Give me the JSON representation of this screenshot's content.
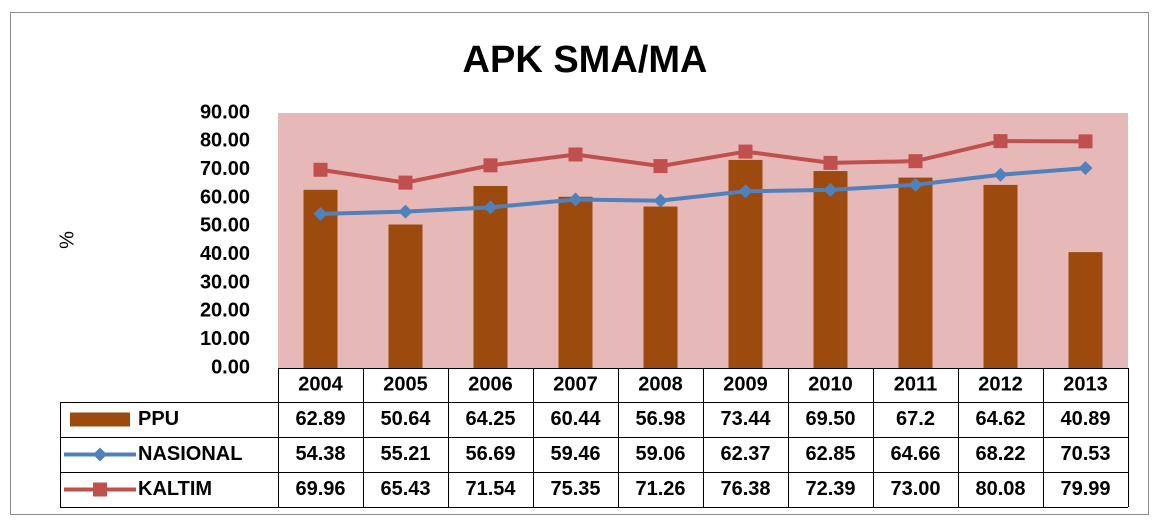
{
  "chart_data": {
    "type": "bar",
    "title": "APK SMA/MA",
    "y_label": "%",
    "categories": [
      "2004",
      "2005",
      "2006",
      "2007",
      "2008",
      "2009",
      "2010",
      "2011",
      "2012",
      "2013"
    ],
    "series": [
      {
        "name": "PPU",
        "type": "bar",
        "color": "#9c4a0e",
        "values": [
          62.89,
          50.64,
          64.25,
          60.44,
          56.98,
          73.44,
          69.5,
          67.2,
          64.62,
          40.89
        ],
        "value_labels": [
          "62.89",
          "50.64",
          "64.25",
          "60.44",
          "56.98",
          "73.44",
          "69.50",
          "67.2",
          "64.62",
          "40.89"
        ]
      },
      {
        "name": "NASIONAL",
        "type": "line",
        "marker": "diamond",
        "color": "#4f81bd",
        "values": [
          54.38,
          55.21,
          56.69,
          59.46,
          59.06,
          62.37,
          62.85,
          64.66,
          68.22,
          70.53
        ],
        "value_labels": [
          "54.38",
          "55.21",
          "56.69",
          "59.46",
          "59.06",
          "62.37",
          "62.85",
          "64.66",
          "68.22",
          "70.53"
        ]
      },
      {
        "name": "KALTIM",
        "type": "line",
        "marker": "square",
        "color": "#c0504d",
        "values": [
          69.96,
          65.43,
          71.54,
          75.35,
          71.26,
          76.38,
          72.39,
          73.0,
          80.08,
          79.99
        ],
        "value_labels": [
          "69.96",
          "65.43",
          "71.54",
          "75.35",
          "71.26",
          "76.38",
          "72.39",
          "73.00",
          "80.08",
          "79.99"
        ]
      }
    ],
    "ylim": [
      0,
      90
    ],
    "yticks": [
      {
        "value": 0,
        "label": "0.00"
      },
      {
        "value": 10,
        "label": "10.00"
      },
      {
        "value": 20,
        "label": "20.00"
      },
      {
        "value": 30,
        "label": "30.00"
      },
      {
        "value": 40,
        "label": "40.00"
      },
      {
        "value": 50,
        "label": "50.00"
      },
      {
        "value": 60,
        "label": "60.00"
      },
      {
        "value": 70,
        "label": "70.00"
      },
      {
        "value": 80,
        "label": "80.00"
      },
      {
        "value": 90,
        "label": "90.00"
      }
    ],
    "grid": false,
    "plot_background": "#e6b9b8"
  }
}
